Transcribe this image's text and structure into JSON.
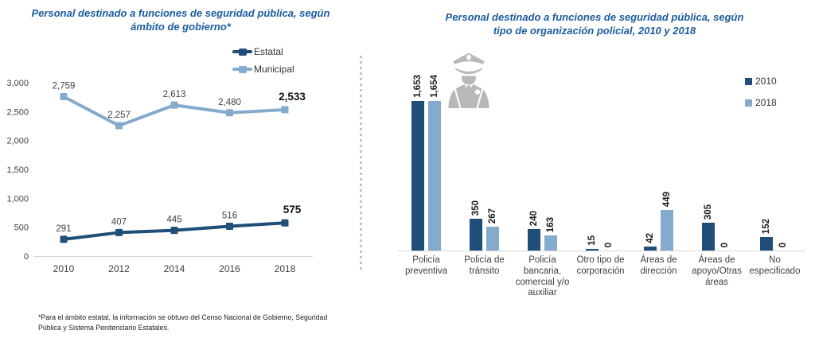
{
  "palette": {
    "navy": "#1F4E79",
    "light_blue": "#84AACD",
    "title_blue": "#1B5C9E",
    "icon_gray": "#B8B8B8",
    "axis_gray": "#D6D6D6",
    "text_gray": "#3F3F3F"
  },
  "chart_data": [
    {
      "type": "line",
      "title": "Personal destinado a funciones de seguridad pública, según ámbito de gobierno*",
      "title_lines": [
        "Personal destinado a funciones de seguridad pública, según",
        "ámbito de gobierno*"
      ],
      "categories": [
        "2010",
        "2012",
        "2014",
        "2016",
        "2018"
      ],
      "series": [
        {
          "name": "Estatal",
          "color": "#1F4E79",
          "values": [
            291,
            407,
            445,
            516,
            575
          ]
        },
        {
          "name": "Municipal",
          "color": "#84AACD",
          "values": [
            2759,
            2257,
            2613,
            2480,
            2533
          ]
        }
      ],
      "ylim": [
        0,
        3000
      ],
      "yticks": [
        0,
        500,
        1000,
        1500,
        2000,
        2500,
        3000
      ],
      "grid": false,
      "legend_position": "top-right",
      "value_labels": true,
      "last_value_bold": true,
      "footnote_lines": [
        "*Para el ámbito estatal, la información se obtuvo del Censo Nacional de Gobierno, Seguridad",
        "Pública y Sistema Penitenciario Estatales."
      ]
    },
    {
      "type": "bar",
      "title": "Personal destinado a funciones de seguridad pública, según tipo de organización policial, 2010 y 2018",
      "title_lines": [
        "Personal destinado a funciones de seguridad pública, según",
        "tipo de organización policial, 2010 y 2018"
      ],
      "categories": [
        "Policía preventiva",
        "Policía de tránsito",
        "Policía bancaria, comercial y/o auxiliar",
        "Otro tipo de corporación",
        "Áreas de dirección",
        "Áreas de apoyo/Otras áreas",
        "No especificado"
      ],
      "category_label_lines": [
        [
          "Policía",
          "preventiva"
        ],
        [
          "Policía de",
          "tránsito"
        ],
        [
          "Policía",
          "bancaria,",
          "comercial y/o",
          "auxiliar"
        ],
        [
          "Otro tipo de",
          "corporación"
        ],
        [
          "Áreas de",
          "dirección"
        ],
        [
          "Áreas de",
          "apoyo/Otras",
          "áreas"
        ],
        [
          "No",
          "especificado"
        ]
      ],
      "series": [
        {
          "name": "2010",
          "color": "#1F4E79",
          "values": [
            1653,
            350,
            240,
            15,
            42,
            305,
            152
          ]
        },
        {
          "name": "2018",
          "color": "#84AACD",
          "values": [
            1654,
            267,
            163,
            0,
            449,
            0,
            0
          ]
        }
      ],
      "ylim": [
        0,
        1700
      ],
      "grid": false,
      "legend_position": "right",
      "value_labels_rotated": true,
      "icon": "police-officer-icon"
    }
  ]
}
